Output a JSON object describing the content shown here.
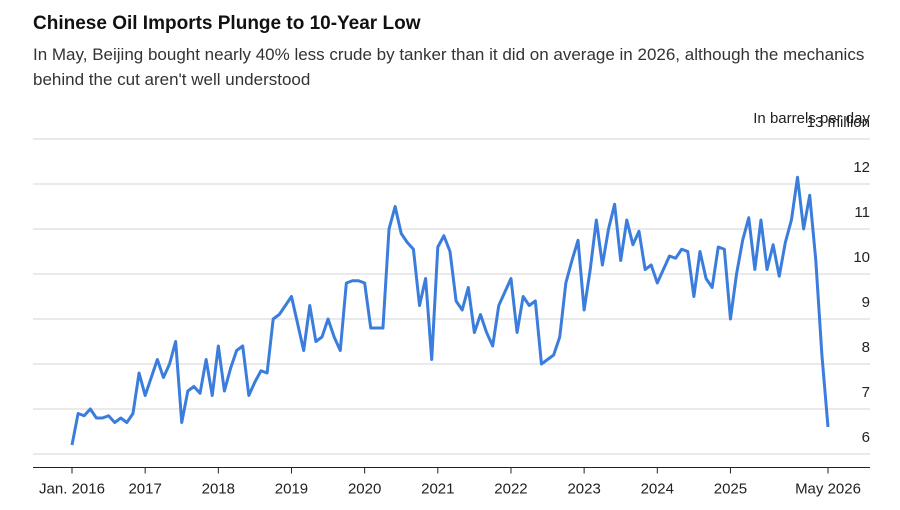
{
  "chart_data": {
    "type": "line",
    "title": "Chinese Oil Imports Plunge to 10-Year Low",
    "subtitle": "In May, Beijing bought nearly 40% less crude by tanker than it did on average in 2026, although the mechanics behind the cut aren't well understood",
    "y_axis_label": "In barrels per day",
    "color": "#3b7ddd",
    "grid": true,
    "x": [
      "2016-01",
      "2016-02",
      "2016-03",
      "2016-04",
      "2016-05",
      "2016-06",
      "2016-07",
      "2016-08",
      "2016-09",
      "2016-10",
      "2016-11",
      "2016-12",
      "2017-01",
      "2017-02",
      "2017-03",
      "2017-04",
      "2017-05",
      "2017-06",
      "2017-07",
      "2017-08",
      "2017-09",
      "2017-10",
      "2017-11",
      "2017-12",
      "2018-01",
      "2018-02",
      "2018-03",
      "2018-04",
      "2018-05",
      "2018-06",
      "2018-07",
      "2018-08",
      "2018-09",
      "2018-10",
      "2018-11",
      "2018-12",
      "2019-01",
      "2019-02",
      "2019-03",
      "2019-04",
      "2019-05",
      "2019-06",
      "2019-07",
      "2019-08",
      "2019-09",
      "2019-10",
      "2019-11",
      "2019-12",
      "2020-01",
      "2020-02",
      "2020-03",
      "2020-04",
      "2020-05",
      "2020-06",
      "2020-07",
      "2020-08",
      "2020-09",
      "2020-10",
      "2020-11",
      "2020-12",
      "2021-01",
      "2021-02",
      "2021-03",
      "2021-04",
      "2021-05",
      "2021-06",
      "2021-07",
      "2021-08",
      "2021-09",
      "2021-10",
      "2021-11",
      "2021-12",
      "2022-01",
      "2022-02",
      "2022-03",
      "2022-04",
      "2022-05",
      "2022-06",
      "2022-07",
      "2022-08",
      "2022-09",
      "2022-10",
      "2022-11",
      "2022-12",
      "2023-01",
      "2023-02",
      "2023-03",
      "2023-04",
      "2023-05",
      "2023-06",
      "2023-07",
      "2023-08",
      "2023-09",
      "2023-10",
      "2023-11",
      "2023-12",
      "2024-01",
      "2024-02",
      "2024-03",
      "2024-04",
      "2024-05",
      "2024-06",
      "2024-07",
      "2024-08",
      "2024-09",
      "2024-10",
      "2024-11",
      "2024-12",
      "2025-01",
      "2025-02",
      "2025-03",
      "2025-04",
      "2025-05",
      "2025-06",
      "2025-07",
      "2025-08",
      "2025-09",
      "2025-10",
      "2025-11",
      "2025-12",
      "2026-01",
      "2026-02",
      "2026-03",
      "2026-04",
      "2026-05"
    ],
    "values": [
      6.2,
      6.9,
      6.85,
      7.0,
      6.8,
      6.8,
      6.85,
      6.7,
      6.8,
      6.7,
      6.9,
      7.8,
      7.3,
      7.7,
      8.1,
      7.7,
      8.0,
      8.5,
      6.7,
      7.4,
      7.5,
      7.35,
      8.1,
      7.3,
      8.4,
      7.4,
      7.9,
      8.3,
      8.4,
      7.3,
      7.6,
      7.85,
      7.8,
      9.0,
      9.1,
      9.3,
      9.5,
      8.9,
      8.3,
      9.3,
      8.5,
      8.6,
      9.0,
      8.6,
      8.3,
      9.8,
      9.85,
      9.85,
      9.8,
      8.8,
      8.8,
      8.8,
      11.0,
      11.5,
      10.9,
      10.7,
      10.55,
      9.3,
      9.9,
      8.1,
      10.6,
      10.85,
      10.5,
      9.4,
      9.2,
      9.7,
      8.7,
      9.1,
      8.7,
      8.4,
      9.3,
      9.6,
      9.9,
      8.7,
      9.5,
      9.3,
      9.4,
      8.0,
      8.1,
      8.2,
      8.6,
      9.8,
      10.3,
      10.75,
      9.2,
      10.1,
      11.2,
      10.2,
      11.0,
      11.55,
      10.3,
      11.2,
      10.65,
      10.95,
      10.1,
      10.2,
      9.8,
      10.1,
      10.4,
      10.35,
      10.55,
      10.5,
      9.5,
      10.5,
      9.9,
      9.7,
      10.6,
      10.55,
      9.0,
      10.0,
      10.75,
      11.25,
      10.1,
      11.2,
      10.1,
      10.65,
      9.95,
      10.7,
      11.2,
      12.15,
      11.0,
      11.75,
      10.3,
      8.2,
      6.6
    ],
    "xlim": [
      "2016-01",
      "2026-05"
    ],
    "xticks": [
      {
        "value": "2016-01",
        "label": "Jan. 2016"
      },
      {
        "value": "2017-01",
        "label": "2017"
      },
      {
        "value": "2018-01",
        "label": "2018"
      },
      {
        "value": "2019-01",
        "label": "2019"
      },
      {
        "value": "2020-01",
        "label": "2020"
      },
      {
        "value": "2021-01",
        "label": "2021"
      },
      {
        "value": "2022-01",
        "label": "2022"
      },
      {
        "value": "2023-01",
        "label": "2023"
      },
      {
        "value": "2024-01",
        "label": "2024"
      },
      {
        "value": "2025-01",
        "label": "2025"
      },
      {
        "value": "2026-05",
        "label": "May 2026"
      }
    ],
    "ylim": [
      5.7,
      13
    ],
    "yticks": [
      6,
      7,
      8,
      9,
      10,
      11,
      12,
      {
        "value": 13,
        "label": "13 million"
      }
    ]
  }
}
